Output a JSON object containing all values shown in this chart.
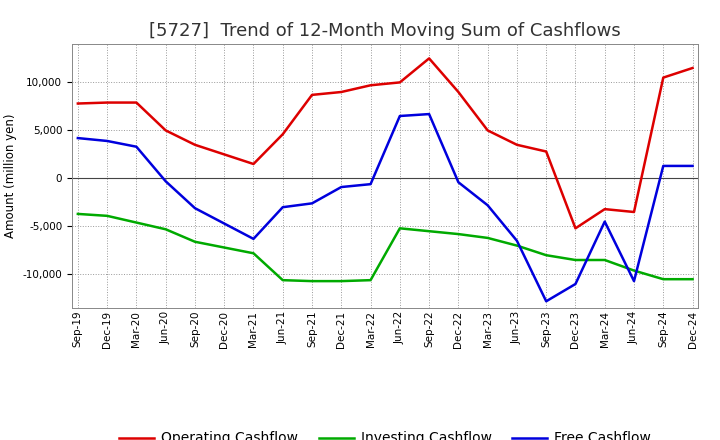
{
  "title": "[5727]  Trend of 12-Month Moving Sum of Cashflows",
  "ylabel": "Amount (million yen)",
  "x_labels": [
    "Sep-19",
    "Dec-19",
    "Mar-20",
    "Jun-20",
    "Sep-20",
    "Dec-20",
    "Mar-21",
    "Jun-21",
    "Sep-21",
    "Dec-21",
    "Mar-22",
    "Jun-22",
    "Sep-22",
    "Dec-22",
    "Mar-23",
    "Jun-23",
    "Sep-23",
    "Dec-23",
    "Mar-24",
    "Jun-24",
    "Sep-24",
    "Dec-24"
  ],
  "operating": [
    7800,
    7900,
    7900,
    5000,
    3500,
    2500,
    1500,
    4600,
    8700,
    9000,
    9700,
    10000,
    12500,
    9000,
    5000,
    3500,
    2800,
    -5200,
    -3200,
    -3500,
    10500,
    11500
  ],
  "investing": [
    -3700,
    -3900,
    -4600,
    -5300,
    -6600,
    -7200,
    -7800,
    -10600,
    -10700,
    -10700,
    -10600,
    -5200,
    -5500,
    -5800,
    -6200,
    -7000,
    -8000,
    -8500,
    -8500,
    -9600,
    -10500,
    -10500
  ],
  "free": [
    4200,
    3900,
    3300,
    -300,
    -3100,
    -4700,
    -6300,
    -3000,
    -2600,
    -900,
    -600,
    6500,
    6700,
    -400,
    -2800,
    -6500,
    -12800,
    -11000,
    -4500,
    -10700,
    1300,
    1300
  ],
  "operating_color": "#dd0000",
  "investing_color": "#00aa00",
  "free_color": "#0000dd",
  "ylim": [
    -13500,
    14000
  ],
  "yticks": [
    -10000,
    -5000,
    0,
    5000,
    10000
  ],
  "bg_color": "#ffffff",
  "plot_bg_color": "#ffffff",
  "grid_color": "#999999",
  "line_width": 1.8,
  "title_fontsize": 13,
  "legend_fontsize": 10,
  "tick_fontsize": 7.5
}
